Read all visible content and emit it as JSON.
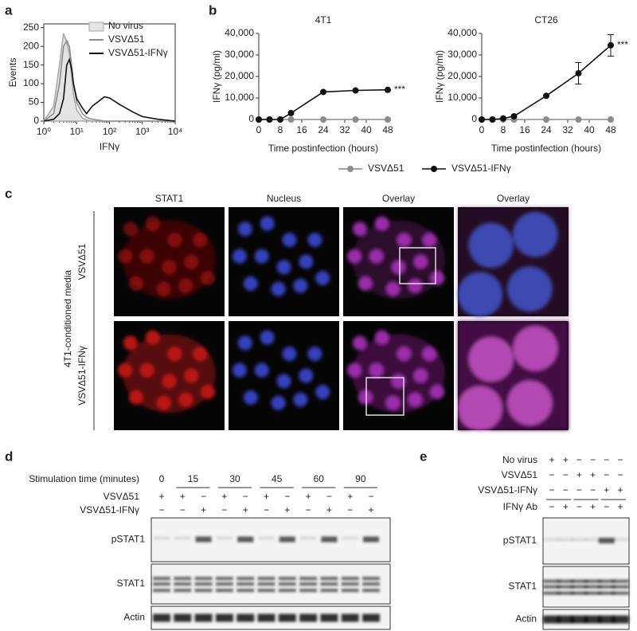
{
  "panel_labels": [
    "a",
    "b",
    "c",
    "d",
    "e"
  ],
  "chart_data": [
    {
      "type": "line",
      "ylabel": "Events",
      "xlabel": "IFNγ",
      "xscale": "log",
      "xlim": [
        1,
        10000
      ],
      "xticks": [
        {
          "value": 1,
          "label": "10⁰"
        },
        {
          "value": 10,
          "label": "10¹"
        },
        {
          "value": 100,
          "label": "10²"
        },
        {
          "value": 1000,
          "label": "10³"
        },
        {
          "value": 10000,
          "label": "10⁴"
        }
      ],
      "ylim": [
        0,
        260
      ],
      "yticks": [
        0,
        50,
        100,
        150,
        200,
        250
      ],
      "legend": "upper right",
      "x": [
        1,
        2,
        3,
        4,
        5,
        6,
        7,
        8,
        10,
        15,
        20,
        30,
        50,
        70,
        100,
        200,
        500,
        1000,
        3000,
        10000
      ],
      "series": [
        {
          "name": "No virus",
          "color": "#aaaaaa",
          "filled": true,
          "values": [
            0,
            40,
            150,
            235,
            210,
            180,
            120,
            70,
            30,
            8,
            3,
            0,
            0,
            0,
            0,
            0,
            0,
            0,
            0,
            0
          ]
        },
        {
          "name": "VSVΔ51",
          "color": "#8c8c8c",
          "values": [
            0,
            20,
            100,
            200,
            215,
            200,
            150,
            100,
            50,
            20,
            10,
            5,
            2,
            0,
            0,
            0,
            0,
            0,
            0,
            0
          ]
        },
        {
          "name": "VSVΔ51-IFNγ",
          "color": "#111111",
          "values": [
            0,
            5,
            20,
            60,
            150,
            165,
            140,
            100,
            60,
            35,
            20,
            40,
            55,
            65,
            62,
            45,
            25,
            12,
            5,
            0
          ]
        }
      ]
    },
    {
      "type": "line",
      "title": "4T1",
      "ylabel": "IFNγ (pg/ml)",
      "xlabel": "Time postinfection (hours)",
      "markers": true,
      "legend": "lower center",
      "xlim": [
        0,
        48
      ],
      "xticks": [
        0,
        8,
        16,
        24,
        32,
        40,
        48
      ],
      "ylim": [
        0,
        40000
      ],
      "yticks": [
        0,
        {
          "value": 10000,
          "label": "10,000"
        },
        {
          "value": 20000,
          "label": "20,000"
        },
        {
          "value": 30000,
          "label": "30,000"
        },
        {
          "value": 40000,
          "label": "40,000"
        }
      ],
      "x": [
        0,
        4,
        8,
        12,
        24,
        36,
        48
      ],
      "series": [
        {
          "name": "VSVΔ51",
          "color": "#8c8c8c",
          "values": [
            0,
            0,
            0,
            0,
            0,
            0,
            0
          ]
        },
        {
          "name": "VSVΔ51-IFNγ",
          "color": "#111111",
          "values": [
            0,
            0,
            0,
            3000,
            12800,
            13500,
            13800
          ]
        }
      ],
      "annotation": "***"
    },
    {
      "type": "line",
      "title": "CT26",
      "ylabel": "IFNγ (pg/ml)",
      "xlabel": "Time postinfection (hours)",
      "markers": true,
      "xlim": [
        0,
        48
      ],
      "xticks": [
        0,
        8,
        16,
        24,
        32,
        40,
        48
      ],
      "ylim": [
        0,
        40000
      ],
      "yticks": [
        0,
        {
          "value": 10000,
          "label": "10,000"
        },
        {
          "value": 20000,
          "label": "20,000"
        },
        {
          "value": 30000,
          "label": "30,000"
        },
        {
          "value": 40000,
          "label": "40,000"
        }
      ],
      "x": [
        0,
        4,
        8,
        12,
        24,
        36,
        48
      ],
      "series": [
        {
          "name": "VSVΔ51",
          "color": "#8c8c8c",
          "values": [
            0,
            0,
            0,
            0,
            0,
            0,
            0
          ]
        },
        {
          "name": "VSVΔ51-IFNγ",
          "color": "#111111",
          "values": [
            0,
            0,
            500,
            1500,
            11000,
            21500,
            34500
          ],
          "errors": [
            0,
            0,
            0,
            0,
            0,
            5000,
            5000
          ]
        }
      ],
      "annotation": "***"
    }
  ],
  "microscopy": {
    "columns": [
      "STAT1",
      "Nucleus",
      "Overlay",
      "Overlay"
    ],
    "rows": [
      "VSVΔ51",
      "VSVΔ51-IFNγ"
    ],
    "side_label": "4T1-conditioned media"
  },
  "blot_d": {
    "label": "Stimulation time (minutes)",
    "times": [
      "0",
      "15",
      "30",
      "45",
      "60",
      "90"
    ],
    "treatments": [
      {
        "name": "VSVΔ51",
        "lanes": [
          "+",
          "+",
          "−",
          "+",
          "−",
          "+",
          "−",
          "+",
          "−",
          "+",
          "−"
        ]
      },
      {
        "name": "VSVΔ51-IFNγ",
        "lanes": [
          "−",
          "−",
          "+",
          "−",
          "+",
          "−",
          "+",
          "−",
          "+",
          "−",
          "+"
        ]
      }
    ],
    "bands": [
      "pSTAT1",
      "STAT1",
      "Actin"
    ]
  },
  "blot_e": {
    "treatments": [
      {
        "name": "No virus",
        "lanes": [
          "+",
          "+",
          "−",
          "−",
          "−",
          "−"
        ]
      },
      {
        "name": "VSVΔ51",
        "lanes": [
          "−",
          "−",
          "+",
          "+",
          "−",
          "−"
        ]
      },
      {
        "name": "VSVΔ51-IFNγ",
        "lanes": [
          "−",
          "−",
          "−",
          "−",
          "+",
          "+"
        ]
      },
      {
        "name": "IFNγ Ab",
        "lanes": [
          "−",
          "+",
          "−",
          "+",
          "−",
          "+"
        ]
      }
    ],
    "bands": [
      "pSTAT1",
      "STAT1",
      "Actin"
    ]
  }
}
